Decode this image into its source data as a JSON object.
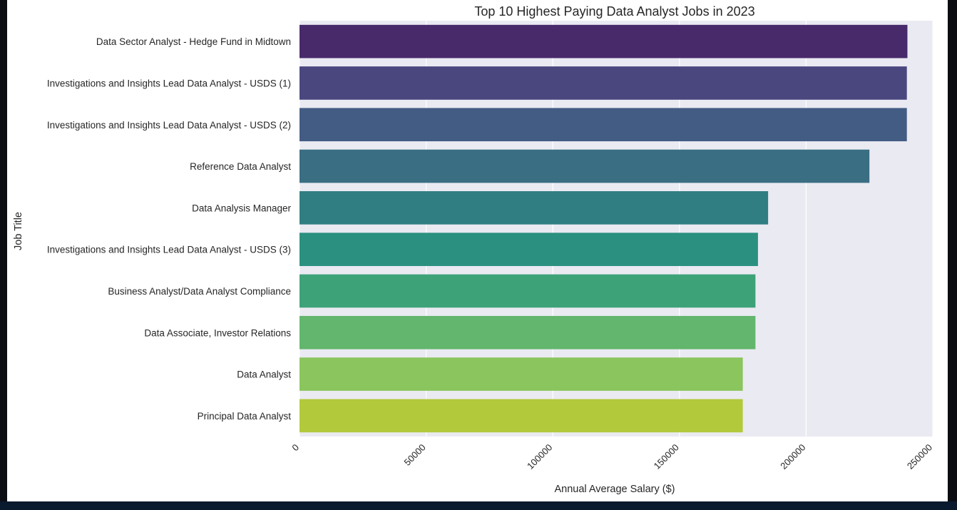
{
  "chart_data": {
    "type": "bar",
    "orientation": "horizontal",
    "title": "Top 10 Highest Paying Data Analyst Jobs in 2023",
    "xlabel": "Annual Average Salary ($)",
    "ylabel": "Job Title",
    "xlim": [
      0,
      250000
    ],
    "xticks": [
      0,
      50000,
      100000,
      150000,
      200000,
      250000
    ],
    "xtick_labels": [
      "0",
      "50000",
      "100000",
      "150000",
      "200000",
      "250000"
    ],
    "grid": true,
    "categories": [
      "Data Sector Analyst - Hedge Fund in Midtown",
      "Investigations and Insights Lead Data Analyst - USDS (1)",
      "Investigations and Insights Lead Data Analyst - USDS (2)",
      "Reference Data Analyst",
      "Data Analysis Manager",
      "Investigations and Insights Lead Data Analyst - USDS (3)",
      "Business Analyst/Data Analyst Compliance",
      "Data Associate, Investor Relations",
      "Data Analyst",
      "Principal Data Analyst"
    ],
    "values": [
      240000,
      239777,
      239777,
      225000,
      185000,
      181000,
      180000,
      180000,
      175000,
      175000
    ],
    "colors": [
      "#482a6b",
      "#4a477f",
      "#435c84",
      "#3a6e83",
      "#307e81",
      "#2b9080",
      "#3da278",
      "#62b66d",
      "#8ac55d",
      "#b2c93b"
    ],
    "plot_background": "#eaeaf2",
    "gridline_color": "#ffffff"
  }
}
